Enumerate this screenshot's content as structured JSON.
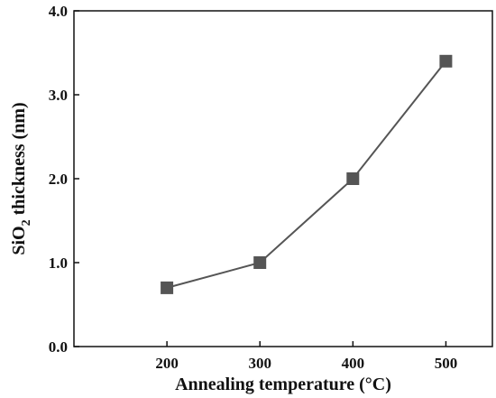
{
  "chart_data": {
    "type": "line",
    "title": "",
    "xlabel": "Annealing temperature (°C)",
    "ylabel": {
      "main": "SiO",
      "subscript": "2",
      "rest": " thickness (nm)"
    },
    "x_ticks": [
      "200",
      "300",
      "400",
      "500"
    ],
    "y_ticks": [
      "0.0",
      "1.0",
      "2.0",
      "3.0",
      "4.0"
    ],
    "xlim": [
      100,
      550
    ],
    "ylim": [
      0,
      4
    ],
    "grid": false,
    "legend": "none",
    "series": [
      {
        "x": [
          200,
          300,
          400,
          500
        ],
        "y": [
          0.7,
          1.0,
          2.0,
          3.4
        ],
        "marker": "square",
        "color": "#555555"
      }
    ]
  }
}
